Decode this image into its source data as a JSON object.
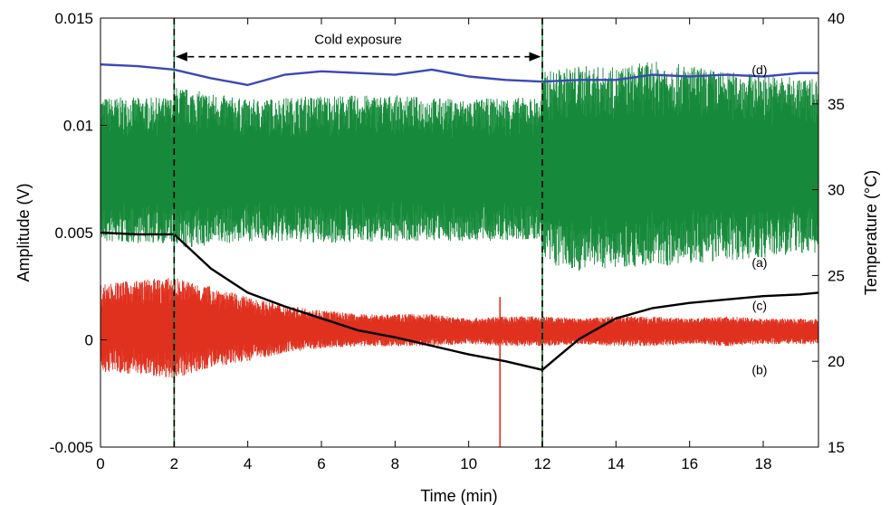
{
  "chart_data": {
    "type": "line",
    "xlabel": "Time (min)",
    "ylabel_left": "Amplitude (V)",
    "ylabel_right": "Temperature (°C)",
    "xlim": [
      0,
      19.5
    ],
    "ylim_left": [
      -0.005,
      0.015
    ],
    "ylim_right": [
      15,
      40
    ],
    "x_ticks": [
      0,
      2,
      4,
      6,
      8,
      10,
      12,
      14,
      16,
      18
    ],
    "x_tick_labels": [
      "0",
      "2",
      "4",
      "6",
      "8",
      "10",
      "12",
      "14",
      "16",
      "18"
    ],
    "y_left_ticks": [
      -0.005,
      0,
      0.005,
      0.01,
      0.015
    ],
    "y_left_tick_labels": [
      "-0.005",
      "0",
      "0.005",
      "0.01",
      "0.015"
    ],
    "y_right_ticks": [
      15,
      20,
      25,
      30,
      35,
      40
    ],
    "y_right_tick_labels": [
      "15",
      "20",
      "25",
      "30",
      "35",
      "40"
    ],
    "grid": false,
    "annotation": {
      "text": "Cold exposure",
      "x_start": 2,
      "x_end": 12,
      "y": 0.0132
    },
    "vertical_markers": [
      2,
      12
    ],
    "series": [
      {
        "name": "(a)",
        "axis": "left",
        "color": "#168a3a",
        "kind": "envelope",
        "x": [
          0,
          2,
          2.05,
          4,
          6,
          8,
          10,
          11,
          12,
          12.05,
          13,
          14,
          15,
          16,
          17,
          18,
          19,
          19.5
        ],
        "upper": [
          0.0113,
          0.0113,
          0.0118,
          0.0112,
          0.0114,
          0.0114,
          0.0112,
          0.0113,
          0.0113,
          0.0125,
          0.0128,
          0.0127,
          0.013,
          0.0128,
          0.0125,
          0.0124,
          0.0122,
          0.0122
        ],
        "lower": [
          0.0045,
          0.0045,
          0.0042,
          0.0046,
          0.0045,
          0.0046,
          0.0046,
          0.0046,
          0.0046,
          0.0035,
          0.0032,
          0.0034,
          0.0034,
          0.0035,
          0.0037,
          0.0038,
          0.004,
          0.004
        ]
      },
      {
        "name": "(b)",
        "axis": "left",
        "color": "#e0301e",
        "kind": "envelope",
        "x": [
          0,
          1,
          2,
          3,
          4,
          5,
          6,
          7,
          8,
          9,
          10,
          11,
          12,
          13,
          14,
          15,
          16,
          17,
          18,
          19,
          19.5
        ],
        "upper": [
          0.0026,
          0.0028,
          0.0029,
          0.0025,
          0.002,
          0.0016,
          0.0014,
          0.0012,
          0.0012,
          0.0012,
          0.001,
          0.0011,
          0.0011,
          0.001,
          0.0011,
          0.0011,
          0.001,
          0.0011,
          0.001,
          0.001,
          0.001
        ],
        "lower": [
          -0.0015,
          -0.0016,
          -0.0018,
          -0.0013,
          -0.001,
          -0.0006,
          -0.0004,
          -0.0003,
          -0.0003,
          -0.0003,
          -0.0002,
          -0.0003,
          -0.0003,
          -0.0002,
          -0.0003,
          -0.0003,
          -0.0002,
          -0.0003,
          -0.0002,
          -0.0002,
          -0.0002
        ]
      },
      {
        "name": "(c)",
        "axis": "right",
        "color": "#000000",
        "kind": "line",
        "x": [
          0,
          1,
          2,
          2.2,
          3,
          4,
          5,
          6,
          7,
          8,
          9,
          10,
          11,
          12,
          12.5,
          13,
          14,
          15,
          16,
          17,
          18,
          19,
          19.5
        ],
        "values": [
          27.5,
          27.4,
          27.4,
          27.0,
          25.4,
          24.0,
          23.2,
          22.5,
          21.8,
          21.4,
          20.9,
          20.4,
          20.0,
          19.5,
          20.4,
          21.3,
          22.5,
          23.1,
          23.4,
          23.6,
          23.8,
          23.9,
          24.0
        ]
      },
      {
        "name": "(d)",
        "axis": "right",
        "color": "#3b48b8",
        "kind": "line",
        "x": [
          0,
          1,
          2,
          3,
          4,
          5,
          6,
          7,
          8,
          9,
          10,
          11,
          12,
          13,
          14,
          15,
          16,
          17,
          18,
          19,
          19.5
        ],
        "values": [
          37.3,
          37.2,
          37.0,
          36.5,
          36.1,
          36.7,
          36.9,
          36.8,
          36.7,
          37.0,
          36.6,
          36.4,
          36.3,
          36.4,
          36.4,
          36.7,
          36.6,
          36.7,
          36.6,
          36.8,
          36.8
        ]
      }
    ],
    "spikes": [
      {
        "x": 10.85,
        "y_from": 0.002,
        "y_to": -0.005,
        "color": "#e0301e"
      },
      {
        "x": 2.0,
        "y_from": 0.0,
        "y_to": -0.005,
        "color": "#e0301e"
      },
      {
        "x": 12.0,
        "y_from": 0.0,
        "y_to": -0.005,
        "color": "#e0301e"
      }
    ]
  }
}
